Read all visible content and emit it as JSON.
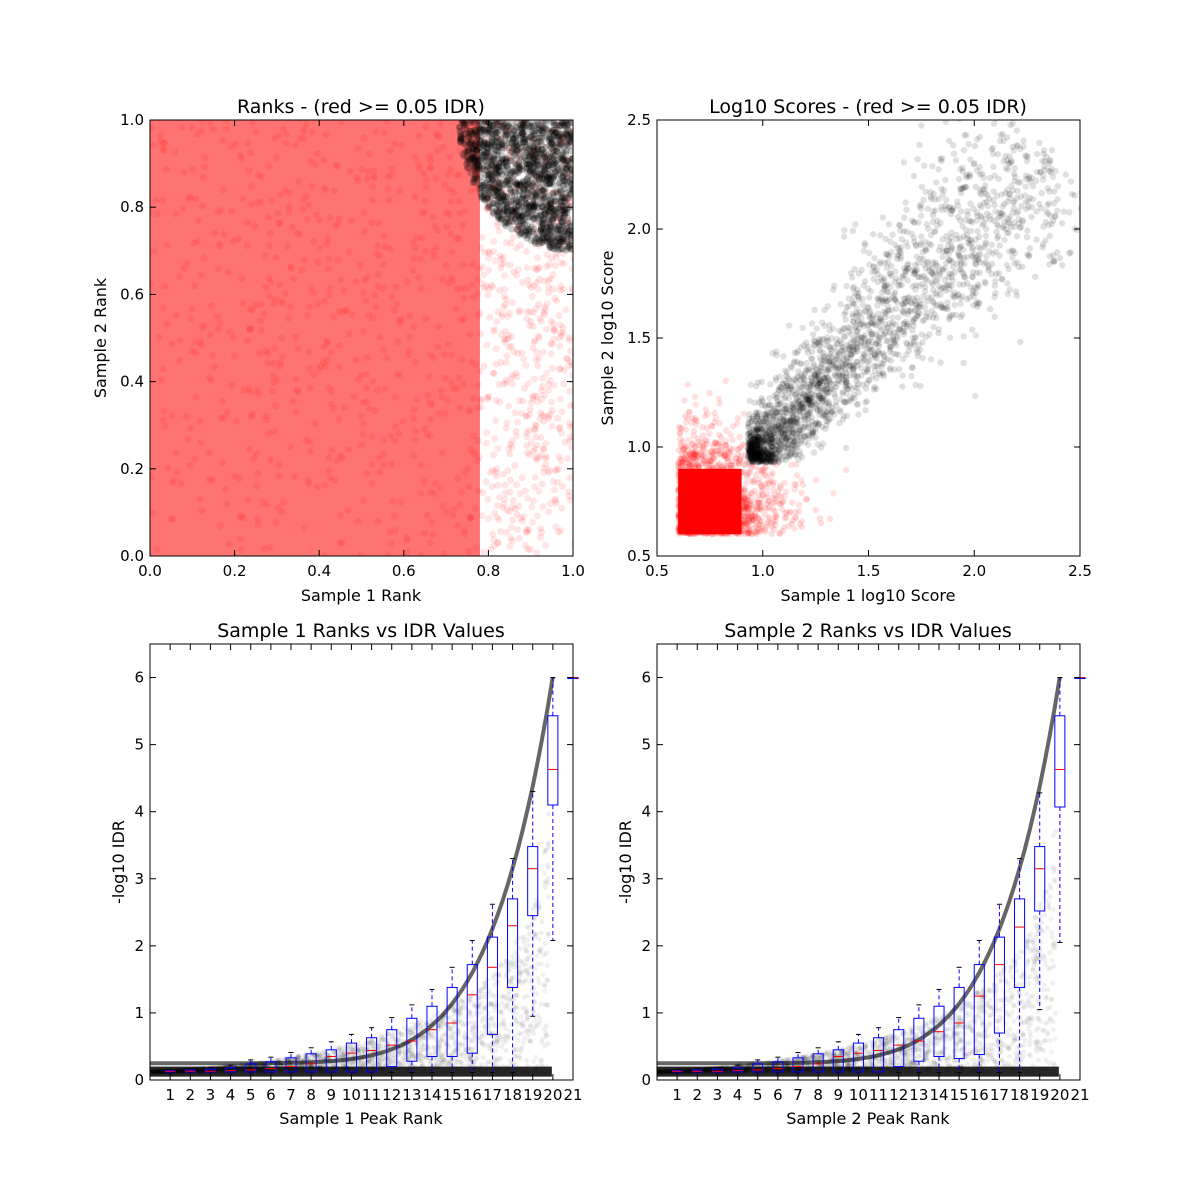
{
  "chart_data": [
    {
      "type": "scatter",
      "title": "Ranks - (red >= 0.05 IDR)",
      "xlabel": "Sample 1 Rank",
      "ylabel": "Sample 2 Rank",
      "xlim": [
        0.0,
        1.0
      ],
      "ylim": [
        0.0,
        1.0
      ],
      "xticks": [
        "0.0",
        "0.2",
        "0.4",
        "0.6",
        "0.8",
        "1.0"
      ],
      "yticks": [
        "0.0",
        "0.2",
        "0.4",
        "0.6",
        "0.8",
        "1.0"
      ],
      "colors": {
        "idr_above": "#ff0000",
        "idr_below": "#000000"
      },
      "description_of_points": "dense cloud; black points (IDR < 0.05) concentrated near (1,1) within radius ~0.3 of corner, red points elsewhere"
    },
    {
      "type": "scatter",
      "title": "Log10 Scores - (red >= 0.05 IDR)",
      "xlabel": "Sample 1 log10 Score",
      "ylabel": "Sample 2 log10 Score",
      "xlim": [
        0.5,
        2.5
      ],
      "ylim": [
        0.5,
        2.5
      ],
      "xticks": [
        "0.5",
        "1.0",
        "1.5",
        "2.0",
        "2.5"
      ],
      "yticks": [
        "0.5",
        "1.0",
        "1.5",
        "2.0",
        "2.5"
      ],
      "colors": {
        "idr_above": "#ff0000",
        "idr_below": "#000000"
      },
      "description_of_points": "red block near (0.6-0.9, 0.6-0.9); black cloud along diagonal from ~(0.95,0.95) to ~(2.35,2.35)"
    },
    {
      "type": "box",
      "title": "Sample 1 Ranks vs IDR Values",
      "xlabel": "Sample 1 Peak Rank",
      "ylabel": "-log10 IDR",
      "ylim": [
        0,
        6.5
      ],
      "yticks": [
        "0",
        "1",
        "2",
        "3",
        "4",
        "5",
        "6"
      ],
      "categories": [
        "1",
        "2",
        "3",
        "4",
        "5",
        "6",
        "7",
        "8",
        "9",
        "10",
        "11",
        "12",
        "13",
        "14",
        "15",
        "16",
        "17",
        "18",
        "19",
        "20",
        "21"
      ],
      "boxes": [
        {
          "q1": 0.12,
          "median": 0.13,
          "q3": 0.14,
          "whislo": 0.11,
          "whishi": 0.16
        },
        {
          "q1": 0.12,
          "median": 0.13,
          "q3": 0.15,
          "whislo": 0.11,
          "whishi": 0.17
        },
        {
          "q1": 0.12,
          "median": 0.13,
          "q3": 0.16,
          "whislo": 0.11,
          "whishi": 0.19
        },
        {
          "q1": 0.12,
          "median": 0.14,
          "q3": 0.18,
          "whislo": 0.11,
          "whishi": 0.22
        },
        {
          "q1": 0.12,
          "median": 0.15,
          "q3": 0.24,
          "whislo": 0.11,
          "whishi": 0.3
        },
        {
          "q1": 0.12,
          "median": 0.17,
          "q3": 0.27,
          "whislo": 0.11,
          "whishi": 0.34
        },
        {
          "q1": 0.12,
          "median": 0.2,
          "q3": 0.33,
          "whislo": 0.11,
          "whishi": 0.41
        },
        {
          "q1": 0.12,
          "median": 0.24,
          "q3": 0.39,
          "whislo": 0.11,
          "whishi": 0.48
        },
        {
          "q1": 0.12,
          "median": 0.35,
          "q3": 0.45,
          "whislo": 0.11,
          "whishi": 0.57
        },
        {
          "q1": 0.12,
          "median": 0.4,
          "q3": 0.55,
          "whislo": 0.11,
          "whishi": 0.68
        },
        {
          "q1": 0.12,
          "median": 0.44,
          "q3": 0.63,
          "whislo": 0.11,
          "whishi": 0.78
        },
        {
          "q1": 0.2,
          "median": 0.52,
          "q3": 0.75,
          "whislo": 0.11,
          "whishi": 0.93
        },
        {
          "q1": 0.28,
          "median": 0.58,
          "q3": 0.92,
          "whislo": 0.11,
          "whishi": 1.12
        },
        {
          "q1": 0.35,
          "median": 0.75,
          "q3": 1.1,
          "whislo": 0.11,
          "whishi": 1.35
        },
        {
          "q1": 0.35,
          "median": 0.85,
          "q3": 1.38,
          "whislo": 0.11,
          "whishi": 1.68
        },
        {
          "q1": 0.4,
          "median": 1.27,
          "q3": 1.72,
          "whislo": 0.11,
          "whishi": 2.08
        },
        {
          "q1": 0.68,
          "median": 1.68,
          "q3": 2.13,
          "whislo": 0.11,
          "whishi": 2.62
        },
        {
          "q1": 1.38,
          "median": 2.3,
          "q3": 2.7,
          "whislo": 0.11,
          "whishi": 3.3
        },
        {
          "q1": 2.45,
          "median": 3.15,
          "q3": 3.48,
          "whislo": 0.95,
          "whishi": 4.3
        },
        {
          "q1": 4.1,
          "median": 4.63,
          "q3": 5.43,
          "whislo": 2.08,
          "whishi": 6.0
        },
        {
          "q1": 6.0,
          "median": 6.0,
          "q3": 6.0,
          "whislo": 6.0,
          "whishi": 6.0
        }
      ],
      "colors": {
        "box": "#0000ff",
        "median": "#ff0000",
        "points": "#000000"
      }
    },
    {
      "type": "box",
      "title": "Sample 2 Ranks vs IDR Values",
      "xlabel": "Sample 2 Peak Rank",
      "ylabel": "-log10 IDR",
      "ylim": [
        0,
        6.5
      ],
      "yticks": [
        "0",
        "1",
        "2",
        "3",
        "4",
        "5",
        "6"
      ],
      "categories": [
        "1",
        "2",
        "3",
        "4",
        "5",
        "6",
        "7",
        "8",
        "9",
        "10",
        "11",
        "12",
        "13",
        "14",
        "15",
        "16",
        "17",
        "18",
        "19",
        "20",
        "21"
      ],
      "boxes": [
        {
          "q1": 0.12,
          "median": 0.13,
          "q3": 0.14,
          "whislo": 0.11,
          "whishi": 0.16
        },
        {
          "q1": 0.12,
          "median": 0.13,
          "q3": 0.15,
          "whislo": 0.11,
          "whishi": 0.17
        },
        {
          "q1": 0.12,
          "median": 0.13,
          "q3": 0.16,
          "whislo": 0.11,
          "whishi": 0.19
        },
        {
          "q1": 0.12,
          "median": 0.14,
          "q3": 0.18,
          "whislo": 0.11,
          "whishi": 0.22
        },
        {
          "q1": 0.12,
          "median": 0.15,
          "q3": 0.24,
          "whislo": 0.11,
          "whishi": 0.3
        },
        {
          "q1": 0.12,
          "median": 0.17,
          "q3": 0.27,
          "whislo": 0.11,
          "whishi": 0.34
        },
        {
          "q1": 0.12,
          "median": 0.2,
          "q3": 0.33,
          "whislo": 0.11,
          "whishi": 0.41
        },
        {
          "q1": 0.12,
          "median": 0.24,
          "q3": 0.39,
          "whislo": 0.11,
          "whishi": 0.48
        },
        {
          "q1": 0.12,
          "median": 0.35,
          "q3": 0.45,
          "whislo": 0.11,
          "whishi": 0.57
        },
        {
          "q1": 0.12,
          "median": 0.4,
          "q3": 0.55,
          "whislo": 0.11,
          "whishi": 0.68
        },
        {
          "q1": 0.12,
          "median": 0.44,
          "q3": 0.63,
          "whislo": 0.11,
          "whishi": 0.78
        },
        {
          "q1": 0.2,
          "median": 0.52,
          "q3": 0.75,
          "whislo": 0.11,
          "whishi": 0.93
        },
        {
          "q1": 0.28,
          "median": 0.58,
          "q3": 0.92,
          "whislo": 0.11,
          "whishi": 1.12
        },
        {
          "q1": 0.35,
          "median": 0.72,
          "q3": 1.1,
          "whislo": 0.11,
          "whishi": 1.35
        },
        {
          "q1": 0.32,
          "median": 0.85,
          "q3": 1.38,
          "whislo": 0.11,
          "whishi": 1.68
        },
        {
          "q1": 0.38,
          "median": 1.25,
          "q3": 1.72,
          "whislo": 0.11,
          "whishi": 2.08
        },
        {
          "q1": 0.7,
          "median": 1.72,
          "q3": 2.13,
          "whislo": 0.11,
          "whishi": 2.62
        },
        {
          "q1": 1.38,
          "median": 2.28,
          "q3": 2.7,
          "whislo": 0.11,
          "whishi": 3.3
        },
        {
          "q1": 2.52,
          "median": 3.15,
          "q3": 3.48,
          "whislo": 1.05,
          "whishi": 4.28
        },
        {
          "q1": 4.07,
          "median": 4.63,
          "q3": 5.43,
          "whislo": 2.05,
          "whishi": 6.0
        },
        {
          "q1": 6.0,
          "median": 6.0,
          "q3": 6.0,
          "whislo": 6.0,
          "whishi": 6.0
        }
      ],
      "colors": {
        "box": "#0000ff",
        "median": "#ff0000",
        "points": "#000000"
      }
    }
  ]
}
